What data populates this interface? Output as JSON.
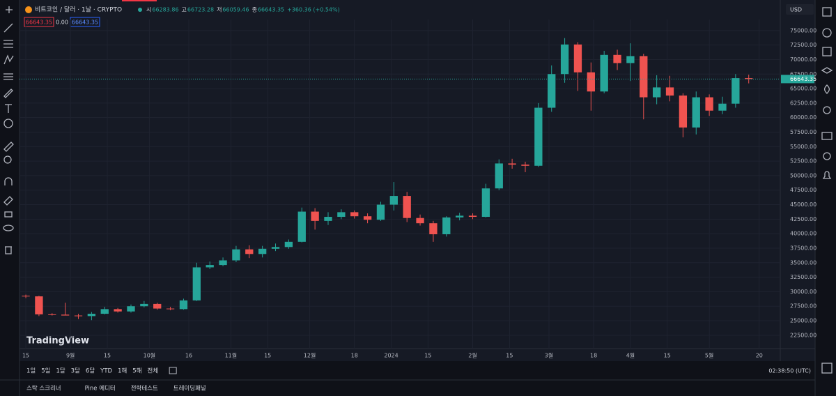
{
  "header": {
    "symbol": "비트코인 / 달러 · 1날 · CRYPTO",
    "ohlc": [
      {
        "label": "시",
        "value": "66283.86"
      },
      {
        "label": "고",
        "value": "66723.28"
      },
      {
        "label": "저",
        "value": "66059.46"
      },
      {
        "label": "종",
        "value": "66643.35"
      }
    ],
    "change": "+360.36 (+0.54%)"
  },
  "badges": [
    "66643.35",
    "0.00",
    "66643.35"
  ],
  "currency": "USD",
  "watermark": "TradingView",
  "chart_data": {
    "type": "candlestick",
    "up_color": "#26a69a",
    "down_color": "#ef5350",
    "grid": true,
    "open": [
      29300,
      29200,
      26100,
      26050,
      25900,
      25800,
      26200,
      27000,
      26600,
      27500,
      27900,
      27100,
      27000,
      28500,
      34200,
      34600,
      35400,
      37300,
      36500,
      37400,
      37700,
      38600,
      43800,
      42200,
      42900,
      43700,
      43000,
      42400,
      45000,
      46500,
      42700,
      41800,
      39900,
      42800,
      43100,
      42900,
      47800,
      52100,
      51900,
      51700,
      61700,
      67500,
      72600,
      67800,
      64500,
      70800,
      69400,
      70600,
      63500,
      65200,
      63800,
      58300,
      63500,
      61200,
      62400,
      66800
    ],
    "high": [
      29500,
      29300,
      26300,
      28100,
      26200,
      26500,
      27400,
      27200,
      27800,
      28400,
      28100,
      27400,
      28800,
      35000,
      35200,
      35900,
      37900,
      38000,
      37900,
      38300,
      39000,
      44500,
      44400,
      43700,
      44200,
      44000,
      43500,
      45500,
      48900,
      47200,
      43300,
      42200,
      43000,
      43600,
      43500,
      48600,
      52800,
      52900,
      52400,
      62500,
      69000,
      73700,
      73000,
      69500,
      71500,
      71700,
      72800,
      71000,
      67300,
      67200,
      64200,
      64500,
      64000,
      63600,
      67500,
      67400
    ],
    "low": [
      28900,
      25800,
      25900,
      25900,
      25300,
      25100,
      26100,
      26400,
      26400,
      27300,
      26900,
      26800,
      26900,
      28400,
      33900,
      34400,
      35100,
      35800,
      35900,
      37000,
      37400,
      38500,
      40700,
      41500,
      42500,
      42600,
      41800,
      42200,
      44000,
      42000,
      41400,
      38600,
      39500,
      42300,
      42500,
      42800,
      47500,
      51200,
      50600,
      51500,
      61000,
      66000,
      64600,
      61200,
      64200,
      68200,
      66300,
      59700,
      62300,
      62800,
      56600,
      57100,
      60300,
      60600,
      61700,
      65900
    ],
    "close": [
      29200,
      26100,
      26050,
      25900,
      25800,
      26200,
      27000,
      26600,
      27500,
      27900,
      27100,
      27000,
      28500,
      34200,
      34600,
      35400,
      37300,
      36500,
      37400,
      37700,
      38600,
      43800,
      42200,
      42900,
      43700,
      43000,
      42400,
      45000,
      46500,
      42700,
      41800,
      39900,
      42800,
      43100,
      42900,
      47800,
      52100,
      51900,
      51700,
      61700,
      67500,
      72600,
      67800,
      64500,
      70800,
      69400,
      70600,
      63500,
      65200,
      63800,
      58300,
      63500,
      61200,
      62400,
      66800,
      66643.35
    ],
    "xlim": [
      -0.48,
      57.4
    ],
    "xticks": [
      {
        "value": 0,
        "label": "15"
      },
      {
        "value": 3.4,
        "label": "9월"
      },
      {
        "value": 6.2,
        "label": "15"
      },
      {
        "value": 9.4,
        "label": "10월"
      },
      {
        "value": 12.4,
        "label": "16"
      },
      {
        "value": 15.6,
        "label": "11월"
      },
      {
        "value": 18.4,
        "label": "15"
      },
      {
        "value": 21.6,
        "label": "12월"
      },
      {
        "value": 25,
        "label": "18"
      },
      {
        "value": 27.8,
        "label": "2024"
      },
      {
        "value": 30.6,
        "label": "15"
      },
      {
        "value": 34,
        "label": "2월"
      },
      {
        "value": 36.8,
        "label": "15"
      },
      {
        "value": 39.8,
        "label": "3월"
      },
      {
        "value": 43.2,
        "label": "18"
      },
      {
        "value": 46,
        "label": "4월"
      },
      {
        "value": 48.8,
        "label": "15"
      },
      {
        "value": 52,
        "label": "5월"
      },
      {
        "value": 55.8,
        "label": "20"
      }
    ],
    "ylim": [
      20200,
      76900
    ],
    "yticks": [
      {
        "value": 22500,
        "label": "22500.00"
      },
      {
        "value": 25000,
        "label": "25000.00"
      },
      {
        "value": 27500,
        "label": "27500.00"
      },
      {
        "value": 30000,
        "label": "30000.00"
      },
      {
        "value": 32500,
        "label": "32500.00"
      },
      {
        "value": 35000,
        "label": "35000.00"
      },
      {
        "value": 37500,
        "label": "37500.00"
      },
      {
        "value": 40000,
        "label": "40000.00"
      },
      {
        "value": 42500,
        "label": "42500.00"
      },
      {
        "value": 45000,
        "label": "45000.00"
      },
      {
        "value": 47500,
        "label": "47500.00"
      },
      {
        "value": 50000,
        "label": "50000.00"
      },
      {
        "value": 52500,
        "label": "52500.00"
      },
      {
        "value": 55000,
        "label": "55000.00"
      },
      {
        "value": 57500,
        "label": "57500.00"
      },
      {
        "value": 60000,
        "label": "60000.00"
      },
      {
        "value": 62500,
        "label": "62500.00"
      },
      {
        "value": 65000,
        "label": "65000.00"
      },
      {
        "value": 67500,
        "label": "67500.00"
      },
      {
        "value": 70000,
        "label": "70000.00"
      },
      {
        "value": 72500,
        "label": "72500.00"
      },
      {
        "value": 75000,
        "label": "75000.00"
      }
    ],
    "last_price": {
      "value": 66643.35,
      "label": "66643.35"
    }
  },
  "timeframes": [
    "1일",
    "5일",
    "1달",
    "3달",
    "6달",
    "YTD",
    "1해",
    "5해",
    "전체"
  ],
  "clock": "02:38:50 (UTC)",
  "tabs": [
    "스탁 스크리너",
    "Pine 에디터",
    "전략테스트",
    "트레이딩패널"
  ]
}
